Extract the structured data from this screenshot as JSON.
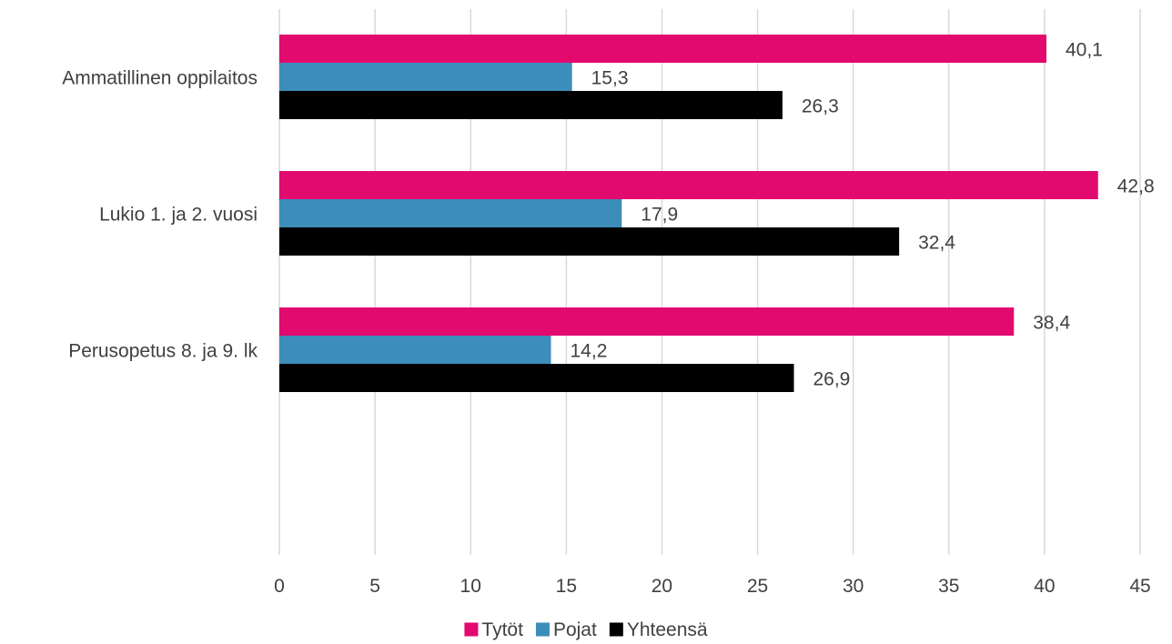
{
  "chart_data": {
    "type": "bar",
    "orientation": "horizontal",
    "categories": [
      "Ammatillinen oppilaitos",
      "Lukio 1. ja 2. vuosi",
      "Perusopetus 8. ja 9. lk"
    ],
    "series": [
      {
        "name": "Tytöt",
        "values": [
          40.1,
          42.8,
          38.4
        ],
        "labels": [
          "40,1",
          "42,8",
          "38,4"
        ],
        "color": "#e2096f"
      },
      {
        "name": "Pojat",
        "values": [
          15.3,
          17.9,
          14.2
        ],
        "labels": [
          "15,3",
          "17,9",
          "14,2"
        ],
        "color": "#3d8dbb"
      },
      {
        "name": "Yhteensä",
        "values": [
          26.3,
          32.4,
          26.9
        ],
        "labels": [
          "26,3",
          "32,4",
          "26,9"
        ],
        "color": "#000000"
      }
    ],
    "xlim": [
      0,
      45
    ],
    "xticks": [
      0,
      5,
      10,
      15,
      20,
      25,
      30,
      35,
      40,
      45
    ],
    "grid": true,
    "legend_position": "bottom",
    "title": "",
    "xlabel": "",
    "ylabel": ""
  },
  "colors": {
    "grid": "#d9d9d9",
    "text": "#404040"
  }
}
